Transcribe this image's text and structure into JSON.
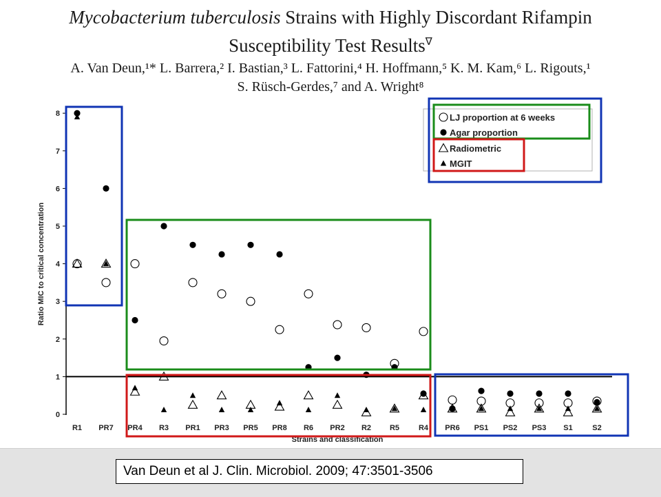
{
  "paper": {
    "title_italic": "Mycobacterium tuberculosis",
    "title_rest": " Strains with Highly Discordant Rifampin",
    "title_line2": "Susceptibility Test Results",
    "title_mark": "∇",
    "authors_line1": "A. Van Deun,¹* L. Barrera,² I. Bastian,³ L. Fattorini,⁴ H. Hoffmann,⁵ K. M. Kam,⁶ L. Rigouts,¹",
    "authors_line2": "S. Rüsch-Gerdes,⁷ and A. Wright⁸",
    "citation": "Van Deun et al J. Clin. Microbiol. 2009; 47:3501-3506"
  },
  "highlight_colors": {
    "blue": "#1034b4",
    "green": "#1a8c1a",
    "red": "#d01818"
  },
  "chart_data": {
    "type": "scatter",
    "xlabel": "Strains and classification",
    "ylabel": "Ratio MIC to critical concentration",
    "ylim": [
      0,
      8
    ],
    "yticks": [
      0,
      1,
      2,
      3,
      4,
      5,
      6,
      7,
      8
    ],
    "reference_line_y": 1,
    "grid": false,
    "legend_position": "top-right",
    "categories": [
      "R1",
      "PR7",
      "PR4",
      "R3",
      "PR1",
      "PR3",
      "PR5",
      "PR8",
      "R6",
      "PR2",
      "R2",
      "R5",
      "R4",
      "PR6",
      "PS1",
      "PS2",
      "PS3",
      "S1",
      "S2"
    ],
    "series": [
      {
        "name": "LJ proportion at 6 weeks",
        "marker": "open-circle",
        "values": [
          4,
          3.5,
          4,
          1.95,
          3.5,
          3.2,
          3,
          2.25,
          3.2,
          2.38,
          2.3,
          1.35,
          2.2,
          0.38,
          0.35,
          0.3,
          0.3,
          0.3,
          0.35
        ]
      },
      {
        "name": "Agar proportion",
        "marker": "filled-circle",
        "values": [
          8,
          6,
          2.5,
          5,
          4.5,
          4.25,
          4.5,
          4.25,
          1.25,
          1.5,
          1.05,
          1.25,
          0.55,
          0.15,
          0.62,
          0.55,
          0.55,
          0.55,
          0.32
        ]
      },
      {
        "name": "Radiometric",
        "marker": "open-triangle",
        "values": [
          4,
          4,
          0.6,
          1,
          0.25,
          0.5,
          0.25,
          0.2,
          0.5,
          0.25,
          0.05,
          0.15,
          0.5,
          0.15,
          0.15,
          0.05,
          0.15,
          0.05,
          0.15
        ]
      },
      {
        "name": "MGIT",
        "marker": "filled-triangle",
        "values": [
          7.9,
          4,
          0.7,
          0.12,
          0.5,
          0.12,
          0.12,
          0.3,
          0.12,
          0.5,
          0.12,
          0.15,
          0.12,
          0.15,
          0.15,
          0.15,
          0.15,
          0.15,
          0.15
        ]
      }
    ]
  }
}
